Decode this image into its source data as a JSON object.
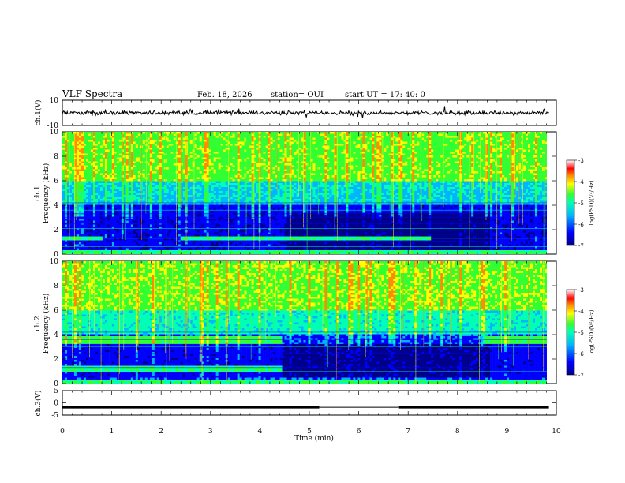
{
  "header": {
    "title": "VLF Spectra",
    "date": "Feb. 18, 2026",
    "station": "station= OUI",
    "start": "start  UT  =   17: 40: 0"
  },
  "colors": {
    "spectrogram_scale": [
      "#00008b",
      "#0000ff",
      "#00b4ff",
      "#00ffb4",
      "#32ff32",
      "#ffff00",
      "#ff8c00",
      "#ff0000",
      "#ffffff"
    ]
  },
  "chart_data": [
    {
      "type": "line",
      "name": "ch1-waveform",
      "ylabel": "ch.1(V)",
      "ylim": [
        -10,
        10
      ],
      "yticks": [
        "10",
        "-10"
      ],
      "xlim": [
        0,
        10
      ],
      "level": 0,
      "amplitude": 1.2
    },
    {
      "type": "heatmap",
      "name": "ch1-spectrogram",
      "ylabel": "ch.1\nFrequency (kHz)",
      "ylabel_line1": "ch.1",
      "ylabel_line2": "Frequency (kHz)",
      "ylim": [
        0,
        10
      ],
      "yticks": [
        "0",
        "2",
        "4",
        "6",
        "8",
        "10"
      ],
      "xlim": [
        0,
        10
      ],
      "colorbar": {
        "label": "log(PSD)(V²/Hz)",
        "range": [
          -7,
          -3
        ],
        "ticks": [
          "-3",
          "-4",
          "-5",
          "-6",
          "-7"
        ]
      }
    },
    {
      "type": "heatmap",
      "name": "ch2-spectrogram",
      "ylabel_line1": "ch.2",
      "ylabel_line2": "Frequency (kHz)",
      "ylim": [
        0,
        10
      ],
      "yticks": [
        "0",
        "2",
        "4",
        "6",
        "8",
        "10"
      ],
      "xlim": [
        0,
        10
      ],
      "colorbar": {
        "label": "log(PSD)(V²/Hz)",
        "range": [
          -7,
          -3
        ],
        "ticks": [
          "-3",
          "-4",
          "-5",
          "-6",
          "-7"
        ]
      }
    },
    {
      "type": "line",
      "name": "ch3-signal",
      "ylabel": "ch.3(V)",
      "ylim": [
        -5,
        5
      ],
      "yticks": [
        "5",
        "0",
        "-5"
      ],
      "xlim": [
        0,
        10
      ],
      "level": -1.8,
      "gap_x": [
        5.2,
        6.8
      ]
    }
  ],
  "xaxis": {
    "label": "Time (min)",
    "ticks": [
      "0",
      "1",
      "2",
      "3",
      "4",
      "5",
      "6",
      "7",
      "8",
      "9",
      "10"
    ]
  }
}
